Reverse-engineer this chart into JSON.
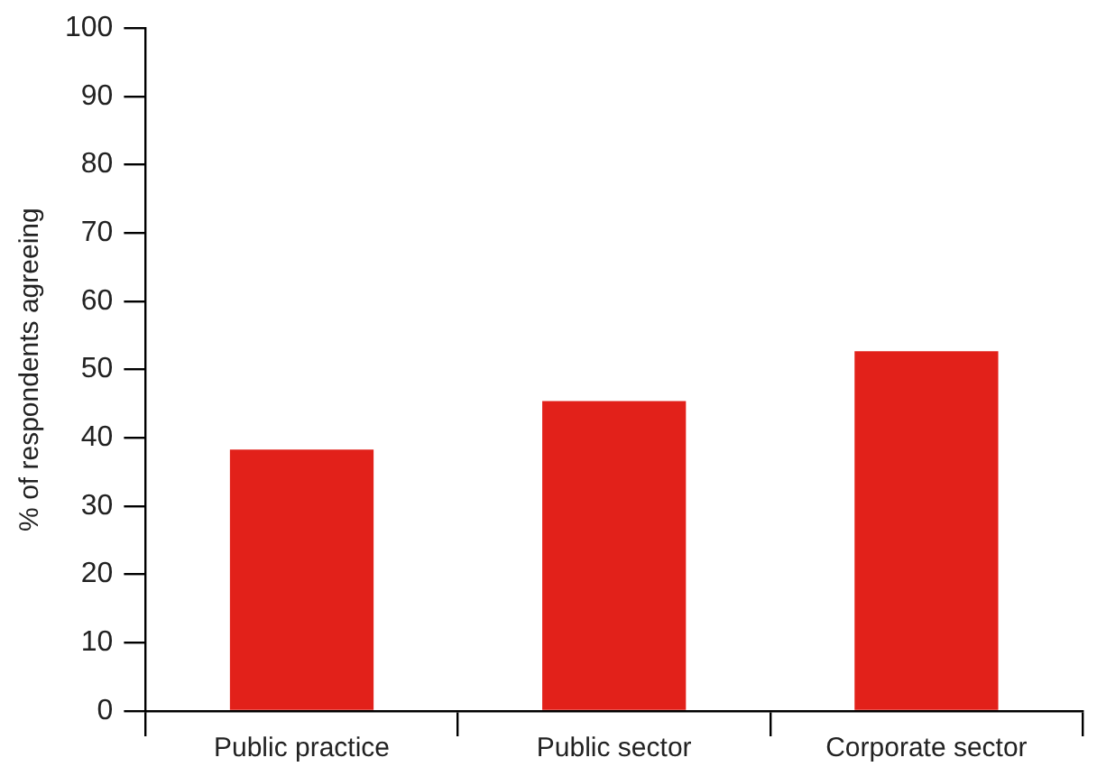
{
  "chart_data": {
    "type": "bar",
    "ylabel": "% of respondents agreeing",
    "categories": [
      "Public practice",
      "Public sector",
      "Corporate sector"
    ],
    "values": [
      38.3,
      45.4,
      52.7
    ],
    "color": "#e2211a",
    "ylim": [
      0,
      100
    ],
    "yticks": [
      0,
      10,
      20,
      30,
      40,
      50,
      60,
      70,
      80,
      90,
      100
    ],
    "grid": false,
    "legend": false
  }
}
